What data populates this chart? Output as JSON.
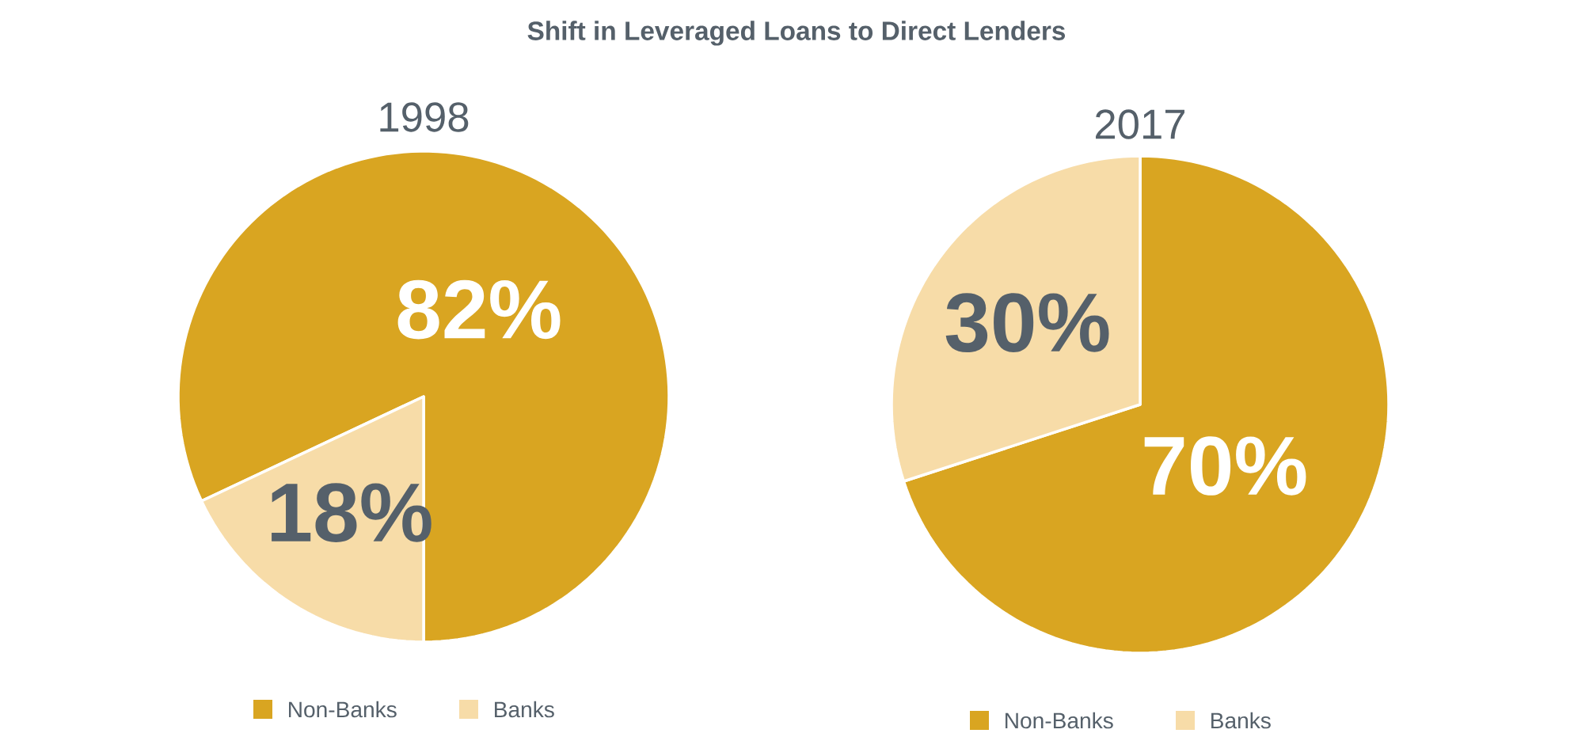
{
  "chart_data": [
    {
      "type": "pie",
      "title": "Shift in Leveraged Loans to Direct Lenders",
      "subtitle": "1998",
      "categories": [
        "Non-Banks",
        "Banks"
      ],
      "values": [
        82,
        18
      ],
      "colors": [
        "#d9a521",
        "#f7dca8"
      ],
      "value_labels": [
        "82%",
        "18%"
      ],
      "legend": "bottom"
    },
    {
      "type": "pie",
      "subtitle": "2017",
      "categories": [
        "Non-Banks",
        "Banks"
      ],
      "values": [
        70,
        30
      ],
      "colors": [
        "#d9a521",
        "#f7dca8"
      ],
      "value_labels": [
        "70%",
        "30%"
      ],
      "legend": "bottom"
    }
  ]
}
